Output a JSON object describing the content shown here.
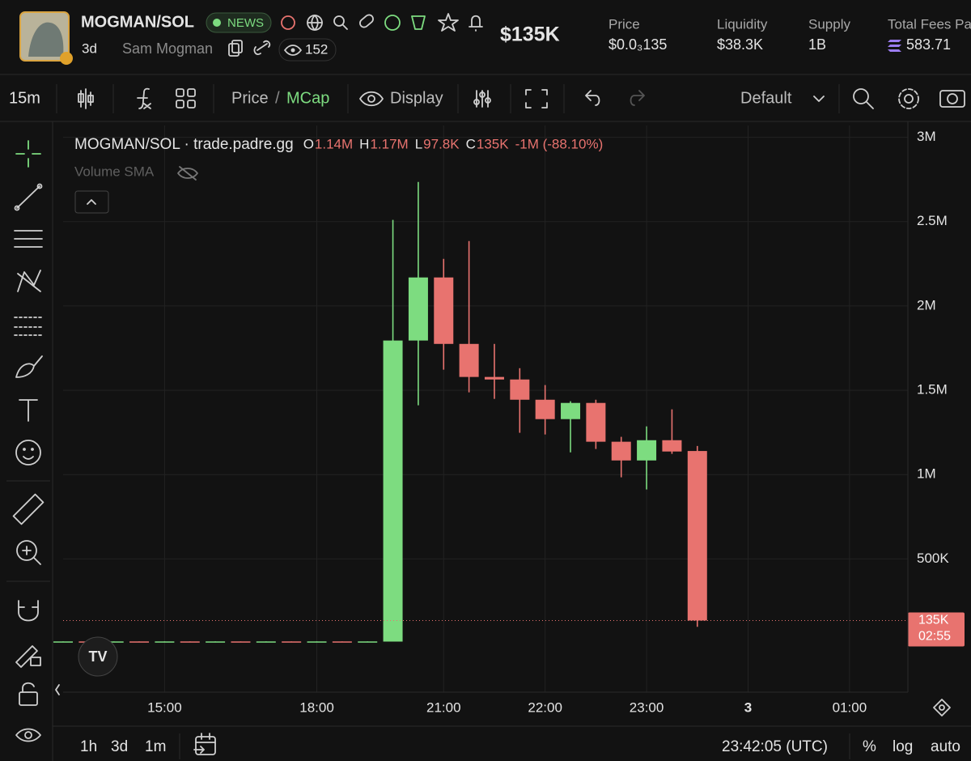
{
  "header": {
    "title": "MOGMAN/SOL",
    "badge": "NEWS",
    "age": "3d",
    "creator": "Sam Mogman",
    "viewers": "152",
    "market_cap": "$135K",
    "stats": [
      {
        "label": "Price",
        "value": "$0.0₃135"
      },
      {
        "label": "Liquidity",
        "value": "$38.3K"
      },
      {
        "label": "Supply",
        "value": "1B"
      },
      {
        "label": "Total Fees Pa",
        "value": "583.71"
      }
    ]
  },
  "toolbar": {
    "interval": "15m",
    "price": "Price",
    "slash": "/",
    "mcap": "MCap",
    "display": "Display",
    "layout": "Default"
  },
  "chart_data": {
    "type": "candlestick",
    "title": "MOGMAN/SOL · trade.padre.gg",
    "ohlc_legend": [
      {
        "key": "O",
        "value": "1.14M"
      },
      {
        "key": "H",
        "value": "1.17M"
      },
      {
        "key": "L",
        "value": "97.8K"
      },
      {
        "key": "C",
        "value": "135K"
      }
    ],
    "change": "-1M (-88.10%)",
    "indicator": "Volume SMA",
    "categories": [
      null,
      null,
      null,
      null,
      null,
      null,
      null,
      null,
      null,
      null,
      null,
      null,
      null,
      null,
      null,
      null,
      null,
      null,
      null,
      null,
      null,
      null,
      null,
      null,
      null,
      null
    ],
    "open": [
      9000,
      11000,
      9000,
      11000,
      9000,
      11000,
      9000,
      11000,
      9000,
      11000,
      9000,
      11000,
      9000,
      10000,
      1795000,
      2169000,
      1775000,
      1579000,
      1564000,
      1444000,
      1329000,
      1425000,
      1195000,
      1084000,
      1204000,
      1140000
    ],
    "high": [
      11000,
      11000,
      11000,
      11000,
      11000,
      11000,
      11000,
      11000,
      11000,
      11000,
      11000,
      11000,
      11000,
      2510000,
      2735000,
      2279000,
      2385000,
      1775000,
      1631000,
      1531000,
      1435000,
      1444000,
      1224000,
      1286000,
      1387000,
      1170000
    ],
    "low": [
      9000,
      9000,
      9000,
      9000,
      9000,
      9000,
      9000,
      9000,
      9000,
      9000,
      9000,
      9000,
      9000,
      10000,
      1411000,
      1622000,
      1488000,
      1449000,
      1248000,
      1238000,
      1132000,
      1152000,
      984000,
      912000,
      1123000,
      97800
    ],
    "close": [
      11000,
      9000,
      11000,
      9000,
      11000,
      9000,
      11000,
      9000,
      11000,
      9000,
      11000,
      9000,
      11000,
      1795000,
      2169000,
      1775000,
      1579000,
      1564000,
      1444000,
      1329000,
      1425000,
      1195000,
      1084000,
      1204000,
      1137000,
      135000
    ],
    "up_color": "#7ddc80",
    "down_color": "#e8736f",
    "xlim": [
      0,
      33.3
    ],
    "xticks": [
      {
        "value": 4,
        "label": "15:00"
      },
      {
        "value": 10,
        "label": "18:00"
      },
      {
        "value": 15,
        "label": "21:00"
      },
      {
        "value": 19,
        "label": "22:00"
      },
      {
        "value": 23,
        "label": "23:00"
      },
      {
        "value": 27,
        "label": "3"
      },
      {
        "value": 31,
        "label": "01:00"
      }
    ],
    "ylim": [
      -290000,
      3070000
    ],
    "yticks": [
      {
        "value": 500000,
        "label": "500K"
      },
      {
        "value": 1000000,
        "label": "1M"
      },
      {
        "value": 1500000,
        "label": "1.5M"
      },
      {
        "value": 2000000,
        "label": "2M"
      },
      {
        "value": 2500000,
        "label": "2.5M"
      },
      {
        "value": 3000000,
        "label": "3M"
      }
    ],
    "grid": true,
    "log_scale": false,
    "last_price": {
      "value": 135000,
      "label": "135K",
      "countdown": "02:55",
      "color": "#e8736f"
    }
  },
  "footer": {
    "ranges": [
      "1h",
      "3d",
      "1m"
    ],
    "clock": "23:42:05 (UTC)",
    "percent": "%",
    "log": "log",
    "auto": "auto"
  }
}
